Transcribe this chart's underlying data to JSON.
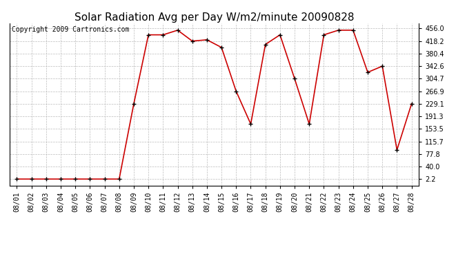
{
  "title": "Solar Radiation Avg per Day W/m2/minute 20090828",
  "copyright": "Copyright 2009 Cartronics.com",
  "x_labels": [
    "08/01",
    "08/02",
    "08/03",
    "08/04",
    "08/05",
    "08/06",
    "08/07",
    "08/08",
    "08/09",
    "08/10",
    "08/11",
    "08/12",
    "08/13",
    "08/14",
    "08/15",
    "08/16",
    "08/17",
    "08/18",
    "08/19",
    "08/20",
    "08/21",
    "08/22",
    "08/23",
    "08/24",
    "08/25",
    "08/26",
    "08/27",
    "08/28"
  ],
  "y_values": [
    2.2,
    2.2,
    2.2,
    2.2,
    2.2,
    2.2,
    2.2,
    2.2,
    229.1,
    437.0,
    437.0,
    451.0,
    418.2,
    422.0,
    399.0,
    266.9,
    168.0,
    408.0,
    437.0,
    304.7,
    168.0,
    437.0,
    451.0,
    451.0,
    324.0,
    342.6,
    90.0,
    229.1
  ],
  "yticks": [
    2.2,
    40.0,
    77.8,
    115.7,
    153.5,
    191.3,
    229.1,
    266.9,
    304.7,
    342.6,
    380.4,
    418.2,
    456.0
  ],
  "ymin": -18.0,
  "ymax": 472.0,
  "line_color": "#cc0000",
  "marker_color": "#000000",
  "bg_color": "#ffffff",
  "grid_color": "#bbbbbb",
  "title_fontsize": 11,
  "copyright_fontsize": 7,
  "tick_fontsize": 7,
  "figwidth": 6.9,
  "figheight": 3.75,
  "dpi": 100
}
